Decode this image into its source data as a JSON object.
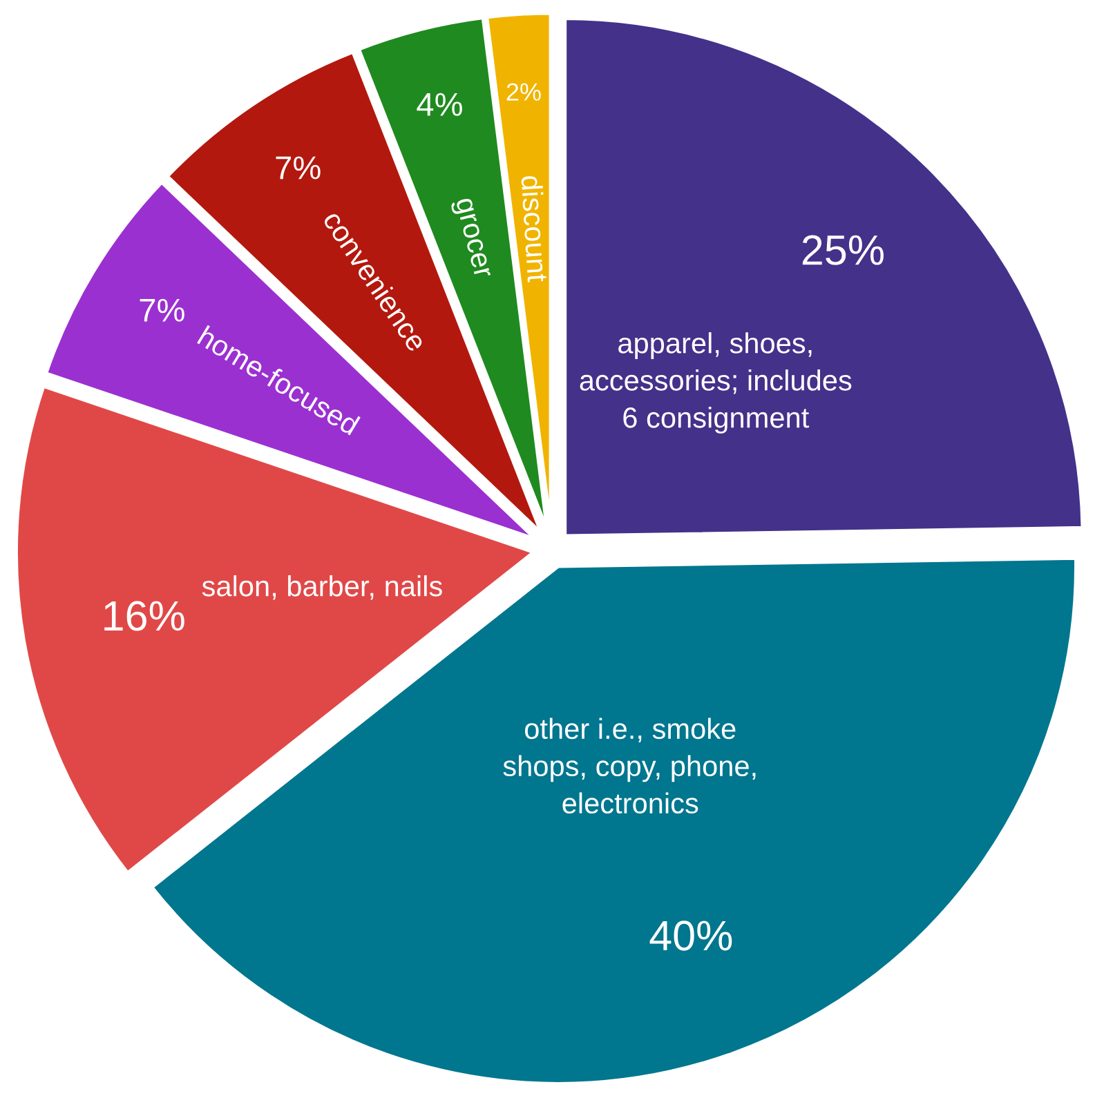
{
  "chart_data": {
    "type": "pie",
    "categories": [
      "apparel, shoes,\naccessories; includes\n6 consignment",
      "other i.e., smoke\nshops, copy, phone,\nelectronics",
      "salon, barber, nails",
      "home-focused",
      "convenience",
      "grocer",
      "discount"
    ],
    "values": [
      25,
      40,
      16,
      7,
      7,
      4,
      2
    ],
    "value_labels": [
      "25%",
      "40%",
      "16%",
      "7%",
      "7%",
      "4%",
      "2%"
    ],
    "colors": [
      "#44318a",
      "#00768f",
      "#e04848",
      "#9b30d0",
      "#b3180e",
      "#1f8a1f",
      "#f0b400"
    ]
  }
}
